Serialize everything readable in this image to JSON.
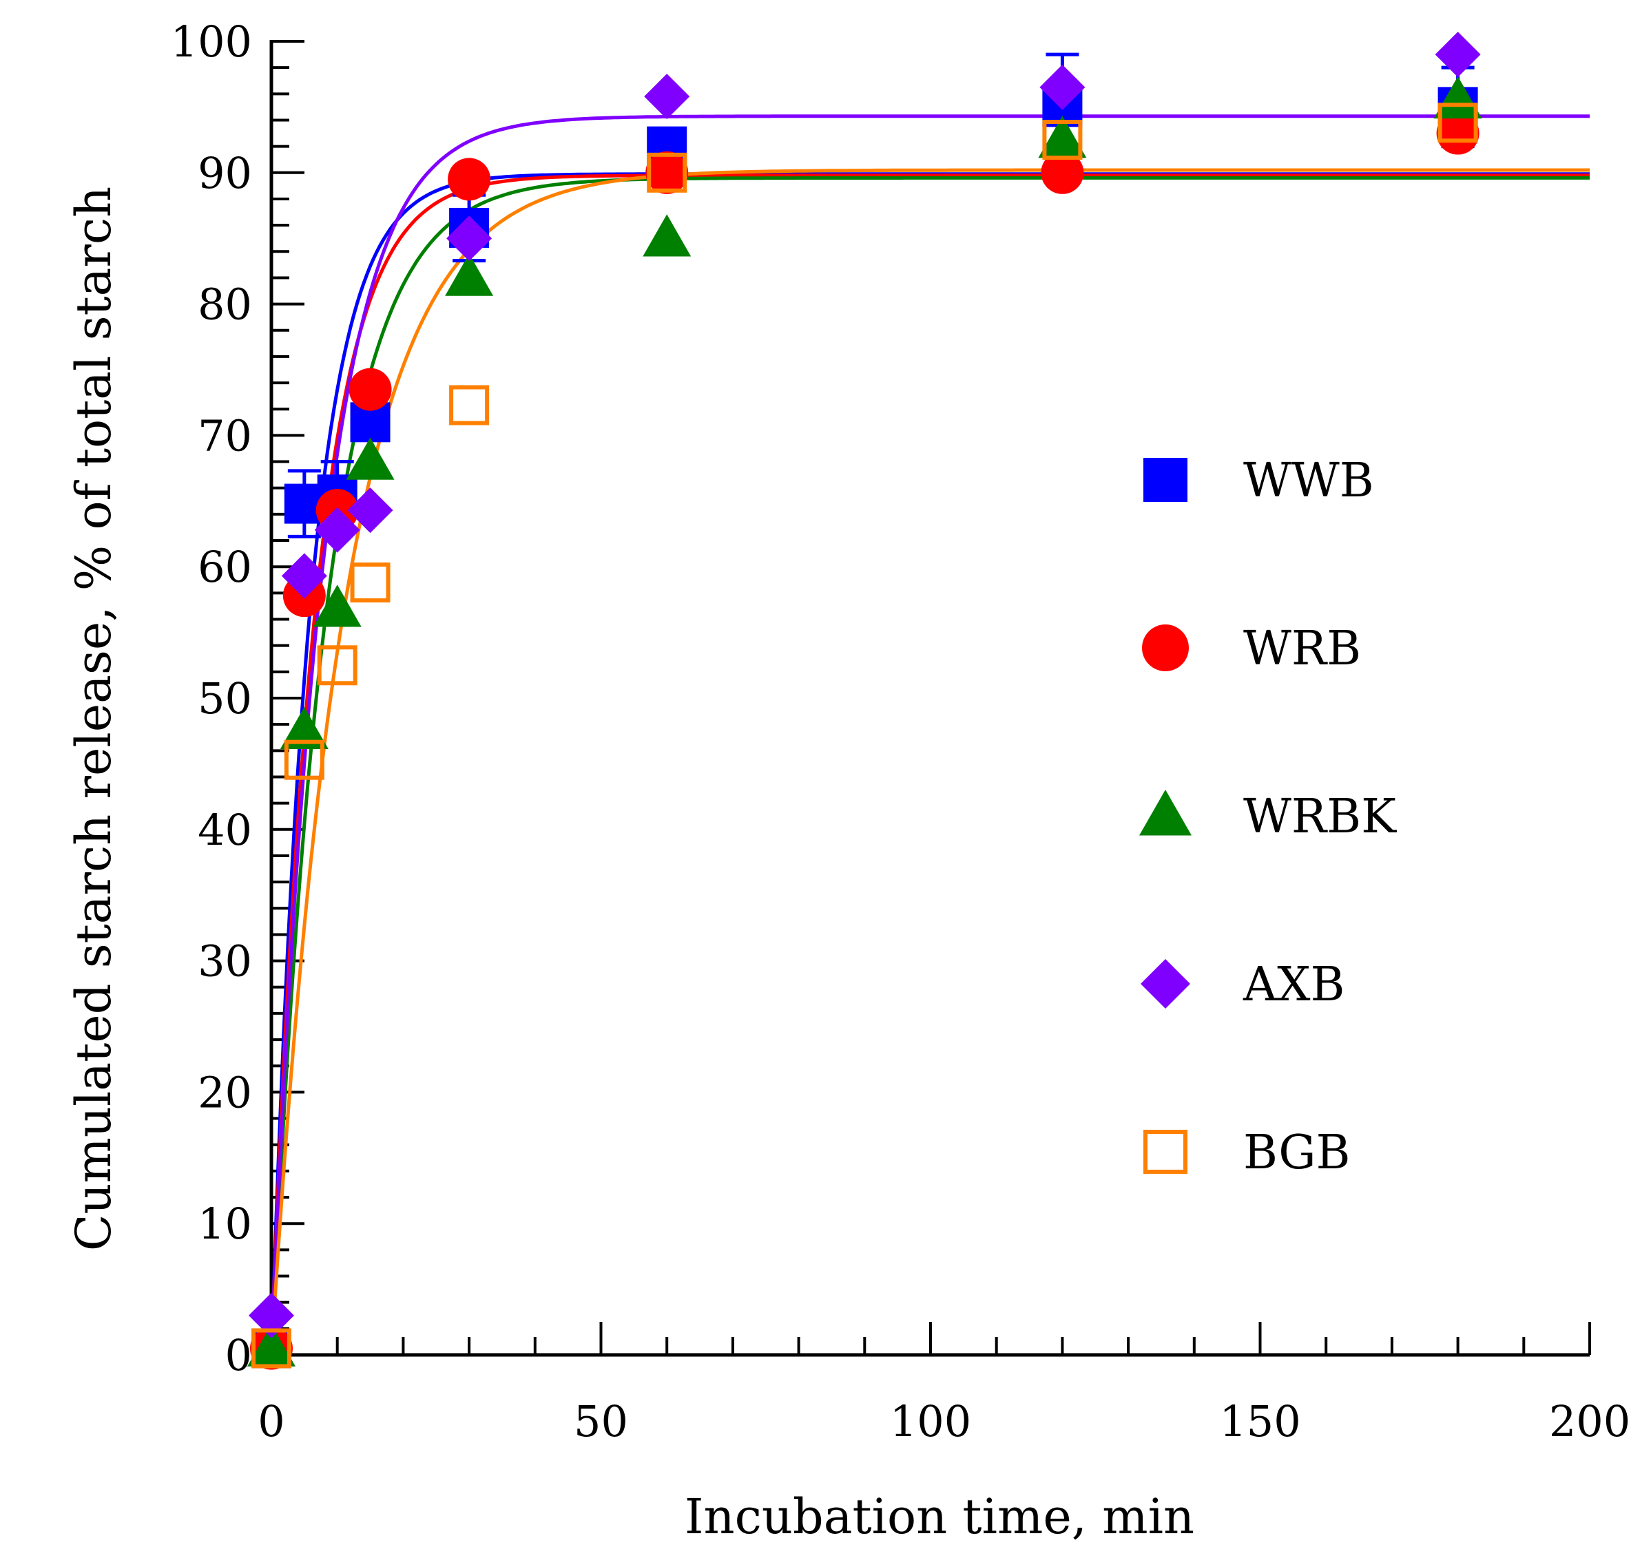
{
  "chart_data": {
    "type": "scatter",
    "title": "",
    "xlabel": "Incubation time, min",
    "ylabel": "Cumulated starch release, % of total starch",
    "xlim": [
      0,
      200
    ],
    "ylim": [
      0,
      100
    ],
    "xticks": [
      0,
      50,
      100,
      150,
      200
    ],
    "yticks": [
      0,
      10,
      20,
      30,
      40,
      50,
      60,
      70,
      80,
      90,
      100
    ],
    "grid": false,
    "legend_position": "right",
    "series": [
      {
        "name": "WWB",
        "marker": "square-filled",
        "color": "#0000ff",
        "x": [
          0,
          5,
          10,
          15,
          30,
          60,
          120,
          180
        ],
        "y": [
          0.5,
          64.8,
          65.5,
          71.0,
          85.8,
          92.0,
          95.0,
          95.0
        ],
        "error": [
          0,
          2.5,
          2.5,
          0,
          2.5,
          0,
          4.0,
          3.0
        ],
        "fit_plateau": 89.9,
        "fit_rate": 0.17
      },
      {
        "name": "WRB",
        "marker": "circle-filled",
        "color": "#ff0000",
        "x": [
          0,
          5,
          10,
          15,
          30,
          60,
          120,
          180
        ],
        "y": [
          0.5,
          57.8,
          64.3,
          73.5,
          89.5,
          90.0,
          90.0,
          93.0
        ],
        "error": [
          0,
          0,
          0,
          0,
          0,
          0,
          0,
          0
        ],
        "fit_plateau": 89.8,
        "fit_rate": 0.15
      },
      {
        "name": "WRBK",
        "marker": "triangle-filled",
        "color": "#008000",
        "x": [
          0,
          5,
          10,
          15,
          30,
          60,
          120,
          180
        ],
        "y": [
          0.5,
          47.5,
          56.8,
          68.0,
          82.0,
          85.0,
          92.5,
          95.5
        ],
        "error": [
          0,
          0,
          0,
          0,
          0,
          0,
          0,
          0
        ],
        "fit_plateau": 89.6,
        "fit_rate": 0.12
      },
      {
        "name": "AXB",
        "marker": "diamond-filled",
        "color": "#8000ff",
        "x": [
          0,
          5,
          10,
          15,
          30,
          60,
          120,
          180
        ],
        "y": [
          3.0,
          59.3,
          62.8,
          64.3,
          85.0,
          95.8,
          96.5,
          99.0
        ],
        "error": [
          0,
          0,
          0,
          0,
          0,
          0,
          0,
          0
        ],
        "fit_plateau": 94.3,
        "fit_rate": 0.13
      },
      {
        "name": "BGB",
        "marker": "square-open",
        "color": "#ff8000",
        "x": [
          0,
          5,
          10,
          15,
          30,
          60,
          120,
          180
        ],
        "y": [
          0.5,
          45.3,
          52.5,
          58.8,
          72.3,
          90.0,
          92.5,
          93.8
        ],
        "error": [
          0,
          0,
          0,
          0,
          0,
          0,
          0,
          0
        ],
        "fit_plateau": 90.2,
        "fit_rate": 0.09
      }
    ]
  }
}
